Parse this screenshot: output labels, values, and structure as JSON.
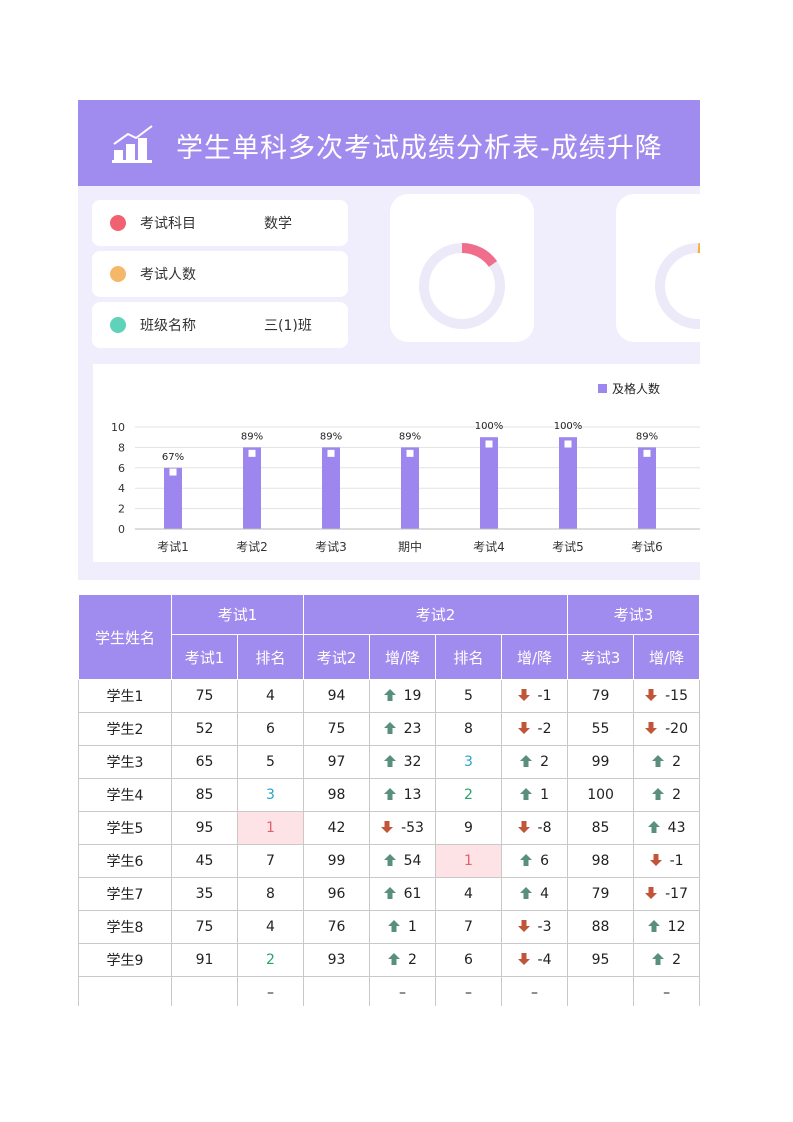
{
  "header": {
    "title": "学生单科多次考试成绩分析表-成绩升降"
  },
  "info": [
    {
      "label": "考试科目",
      "value": "数学"
    },
    {
      "label": "考试人数"
    },
    {
      "label": "班级名称",
      "value": "三(1)班"
    }
  ],
  "chart_data": {
    "type": "bar",
    "categories": [
      "考试1",
      "考试2",
      "考试3",
      "期中",
      "考试4",
      "考试5",
      "考试6"
    ],
    "series": [
      {
        "name": "及格人数",
        "color": "#9d87ee",
        "values": [
          6,
          8,
          8,
          8,
          9,
          9,
          8
        ]
      },
      {
        "color": "#ffffff",
        "axis": "y2",
        "values": [
          67,
          89,
          89,
          89,
          100,
          100,
          89
        ],
        "value_labels": [
          "67%",
          "89%",
          "89%",
          "89%",
          "100%",
          "100%",
          "89%"
        ]
      }
    ],
    "ylim": [
      0,
      10
    ],
    "yticks": [
      0,
      2,
      4,
      6,
      8,
      10
    ],
    "y2lim": [
      0,
      120
    ],
    "grid": true,
    "legend": "top-right"
  },
  "table": {
    "group_headers": [
      "学生姓名",
      "考试1",
      "考试2",
      "考试3"
    ],
    "sub_headers": [
      "考试1",
      "排名",
      "考试2",
      "增/降",
      "排名",
      "增/降",
      "考试3",
      "增/降"
    ],
    "rows": [
      [
        "学生1",
        75,
        4,
        94,
        19,
        5,
        -1,
        79,
        -15
      ],
      [
        "学生2",
        52,
        6,
        75,
        23,
        8,
        -2,
        55,
        -20
      ],
      [
        "学生3",
        65,
        5,
        97,
        32,
        3,
        2,
        99,
        2
      ],
      [
        "学生4",
        85,
        3,
        98,
        13,
        2,
        1,
        100,
        2
      ],
      [
        "学生5",
        95,
        1,
        42,
        -53,
        9,
        -8,
        85,
        43
      ],
      [
        "学生6",
        45,
        7,
        99,
        54,
        1,
        6,
        98,
        -1
      ],
      [
        "学生7",
        35,
        8,
        96,
        61,
        4,
        4,
        79,
        -17
      ],
      [
        "学生8",
        75,
        4,
        76,
        1,
        7,
        -3,
        88,
        12
      ],
      [
        "学生9",
        91,
        2,
        93,
        2,
        6,
        -4,
        95,
        2
      ],
      [
        null,
        null,
        "–",
        null,
        "–",
        "–",
        "–",
        null,
        "–"
      ]
    ]
  }
}
